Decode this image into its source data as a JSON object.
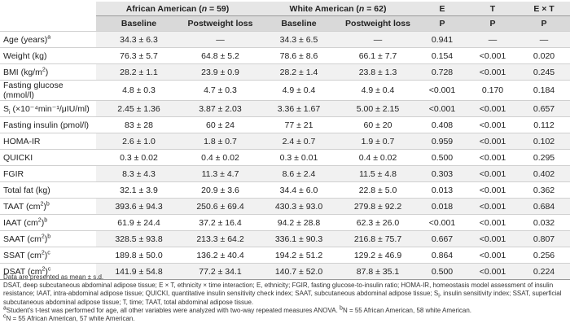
{
  "header": {
    "group_aa_text": "African American (",
    "group_aa_n_var": "n",
    "group_aa_n_val": " = 59)",
    "group_wa_text": "White American (",
    "group_wa_n_var": "n",
    "group_wa_n_val": " = 62)",
    "col_e": "E",
    "col_t": "T",
    "col_ext": "E × T",
    "baseline": "Baseline",
    "postweight": "Postweight loss",
    "p": "P"
  },
  "rows": [
    {
      "label": "Age (years)",
      "label_sup": "a",
      "label_sub": "",
      "label_rest": "",
      "aa_base": "34.3 ± 6.3",
      "aa_post": "—",
      "wa_base": "34.3 ± 6.5",
      "wa_post": "—",
      "e": "0.941",
      "t": "—",
      "ext": "—"
    },
    {
      "label": "Weight (kg)",
      "label_sup": "",
      "label_sub": "",
      "label_rest": "",
      "aa_base": "76.3 ± 5.7",
      "aa_post": "64.8 ± 5.2",
      "wa_base": "78.6 ± 8.6",
      "wa_post": "66.1 ± 7.7",
      "e": "0.154",
      "t": "<0.001",
      "ext": "0.020"
    },
    {
      "label": "BMI (kg/m",
      "label_sup": "2",
      "label_sub": "",
      "label_rest": ")",
      "aa_base": "28.2 ± 1.1",
      "aa_post": "23.9 ± 0.9",
      "wa_base": "28.2 ± 1.4",
      "wa_post": "23.8 ± 1.3",
      "e": "0.728",
      "t": "<0.001",
      "ext": "0.245"
    },
    {
      "label": "Fasting glucose (mmol/l)",
      "label_sup": "",
      "label_sub": "",
      "label_rest": "",
      "aa_base": "4.8 ± 0.3",
      "aa_post": "4.7 ± 0.3",
      "wa_base": "4.9 ± 0.4",
      "wa_post": "4.9 ± 0.4",
      "e": "<0.001",
      "t": "0.170",
      "ext": "0.184"
    },
    {
      "label": "S",
      "label_sup": "",
      "label_sub": "i",
      "label_rest": " (×10⁻⁴min⁻¹/μIU/ml)",
      "aa_base": "2.45 ± 1.36",
      "aa_post": "3.87 ± 2.03",
      "wa_base": "3.36 ± 1.67",
      "wa_post": "5.00 ± 2.15",
      "e": "<0.001",
      "t": "<0.001",
      "ext": "0.657"
    },
    {
      "label": "Fasting insulin (pmol/l)",
      "label_sup": "",
      "label_sub": "",
      "label_rest": "",
      "aa_base": "83 ± 28",
      "aa_post": "60 ± 24",
      "wa_base": "77 ± 21",
      "wa_post": "60 ± 20",
      "e": "0.408",
      "t": "<0.001",
      "ext": "0.112"
    },
    {
      "label": "HOMA-IR",
      "label_sup": "",
      "label_sub": "",
      "label_rest": "",
      "aa_base": "2.6 ± 1.0",
      "aa_post": "1.8 ± 0.7",
      "wa_base": "2.4 ± 0.7",
      "wa_post": "1.9 ± 0.7",
      "e": "0.959",
      "t": "<0.001",
      "ext": "0.102"
    },
    {
      "label": "QUICKI",
      "label_sup": "",
      "label_sub": "",
      "label_rest": "",
      "aa_base": "0.3 ± 0.02",
      "aa_post": "0.4 ± 0.02",
      "wa_base": "0.3 ± 0.01",
      "wa_post": "0.4 ± 0.02",
      "e": "0.500",
      "t": "<0.001",
      "ext": "0.295"
    },
    {
      "label": "FGIR",
      "label_sup": "",
      "label_sub": "",
      "label_rest": "",
      "aa_base": "8.3 ± 4.3",
      "aa_post": "11.3 ± 4.7",
      "wa_base": "8.6 ± 2.4",
      "wa_post": "11.5 ± 4.8",
      "e": "0.303",
      "t": "<0.001",
      "ext": "0.402"
    },
    {
      "label": "Total fat (kg)",
      "label_sup": "",
      "label_sub": "",
      "label_rest": "",
      "aa_base": "32.1 ± 3.9",
      "aa_post": "20.9 ± 3.6",
      "wa_base": "34.4 ± 6.0",
      "wa_post": "22.8 ± 5.0",
      "e": "0.013",
      "t": "<0.001",
      "ext": "0.362"
    },
    {
      "label": "TAAT (cm",
      "label_sup": "2",
      "label_sub": "",
      "label_rest": ")",
      "label_sup2": "b",
      "aa_base": "393.6 ± 94.3",
      "aa_post": "250.6 ± 69.4",
      "wa_base": "430.3 ± 93.0",
      "wa_post": "279.8 ± 92.2",
      "e": "0.018",
      "t": "<0.001",
      "ext": "0.684"
    },
    {
      "label": "IAAT (cm",
      "label_sup": "2",
      "label_sub": "",
      "label_rest": ")",
      "label_sup2": "b",
      "aa_base": "61.9 ± 24.4",
      "aa_post": "37.2 ± 16.4",
      "wa_base": "94.2 ± 28.8",
      "wa_post": "62.3 ± 26.0",
      "e": "<0.001",
      "t": "<0.001",
      "ext": "0.032"
    },
    {
      "label": "SAAT (cm",
      "label_sup": "2",
      "label_sub": "",
      "label_rest": ")",
      "label_sup2": "b",
      "aa_base": "328.5 ± 93.8",
      "aa_post": "213.3 ± 64.2",
      "wa_base": "336.1 ± 90.3",
      "wa_post": "216.8 ± 75.7",
      "e": "0.667",
      "t": "<0.001",
      "ext": "0.807"
    },
    {
      "label": "SSAT (cm",
      "label_sup": "2",
      "label_sub": "",
      "label_rest": ")",
      "label_sup2": "c",
      "aa_base": "189.8 ± 50.0",
      "aa_post": "136.2 ± 40.4",
      "wa_base": "194.2 ± 51.2",
      "wa_post": "129.2 ± 46.9",
      "e": "0.864",
      "t": "<0.001",
      "ext": "0.256"
    },
    {
      "label": "DSAT (cm",
      "label_sup": "2",
      "label_sub": "",
      "label_rest": ")",
      "label_sup2": "c",
      "aa_base": "141.9 ± 54.8",
      "aa_post": "77.2 ± 34.1",
      "wa_base": "140.7 ± 52.0",
      "wa_post": "87.8 ± 35.1",
      "e": "0.500",
      "t": "<0.001",
      "ext": "0.224"
    }
  ],
  "notes": {
    "line1": "Data are presented as mean ± s.d.",
    "line2": "DSAT, deep subcutaneous abdominal adipose tissue; E × T, ethnicity × time interaction; E, ethnicity; FGIR, fasting glucose-to-insulin ratio; HOMA-IR, homeostasis model assessment of insulin resistance; IAAT, intra-abdominal adipose tissue; QUICKI, quantitative insulin sensitivity check index; SAAT, subcutaneous abdominal adipose tissue; S",
    "line2_sub": "i",
    "line2_rest": ", insulin sensitivity index; SSAT, superficial subcutaneous abdominal adipose tissue; T, time; TAAT, total abdominal adipose tissue.",
    "line3_sup_a": "a",
    "line3_a": "Student's t-test was performed for age, all other variables were analyzed with two-way repeated measures ANOVA. ",
    "line3_sup_b": "b",
    "line3_b": "N = 55 African American, 58 white American.",
    "line4_sup_c": "c",
    "line4_c": "N = 55 African American, 57 white American."
  }
}
